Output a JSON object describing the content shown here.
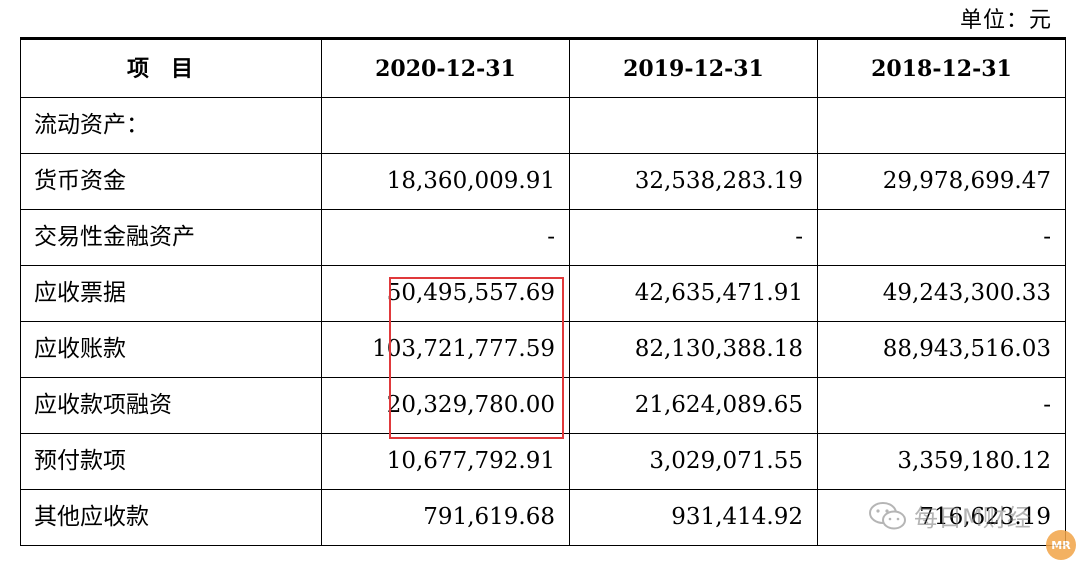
{
  "unit_label": "单位：元",
  "table": {
    "headers": [
      "项目",
      "2020-12-31",
      "2019-12-31",
      "2018-12-31"
    ],
    "rows": [
      {
        "label": "流动资产：",
        "values": [
          "",
          "",
          ""
        ]
      },
      {
        "label": "货币资金",
        "values": [
          "18,360,009.91",
          "32,538,283.19",
          "29,978,699.47"
        ]
      },
      {
        "label": "交易性金融资产",
        "values": [
          "-",
          "-",
          "-"
        ]
      },
      {
        "label": "应收票据",
        "values": [
          "50,495,557.69",
          "42,635,471.91",
          "49,243,300.33"
        ]
      },
      {
        "label": "应收账款",
        "values": [
          "103,721,777.59",
          "82,130,388.18",
          "88,943,516.03"
        ]
      },
      {
        "label": "应收款项融资",
        "values": [
          "20,329,780.00",
          "21,624,089.65",
          "-"
        ]
      },
      {
        "label": "预付款项",
        "values": [
          "10,677,792.91",
          "3,029,071.55",
          "3,359,180.12"
        ]
      },
      {
        "label": "其他应收款",
        "values": [
          "791,619.68",
          "931,414.92",
          "716,623.19"
        ]
      }
    ]
  },
  "highlight": {
    "color": "#e0393b"
  },
  "watermark": {
    "text": "每日M财经",
    "icon": "wechat-icon",
    "logo_text": "MR"
  }
}
